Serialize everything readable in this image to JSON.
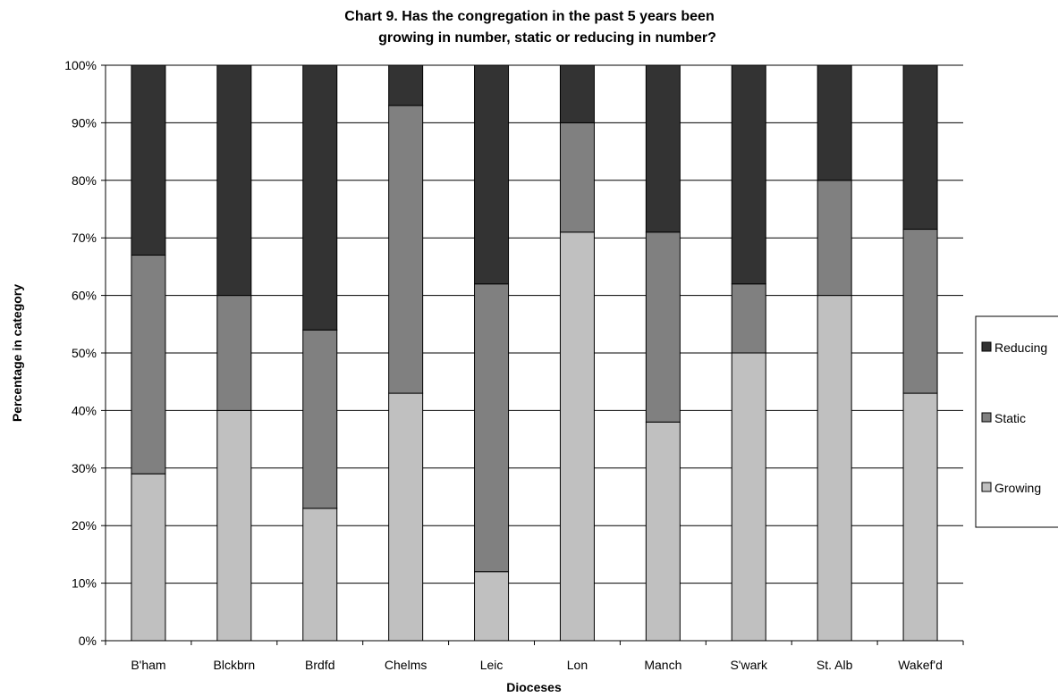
{
  "chart_data": {
    "type": "bar",
    "stacked": true,
    "percent_stacked": true,
    "title_line1": "Chart 9. Has the congregation in the past 5 years been",
    "title_line2": "growing in number, static or reducing in number?",
    "xlabel": "Dioceses",
    "ylabel": "Percentage in category",
    "ylim": [
      0,
      100
    ],
    "yticks": [
      "0%",
      "10%",
      "20%",
      "30%",
      "40%",
      "50%",
      "60%",
      "70%",
      "80%",
      "90%",
      "100%"
    ],
    "grid": true,
    "legend_position": "right",
    "categories": [
      "B'ham",
      "Blckbrn",
      "Brdfd",
      "Chelms",
      "Leic",
      "Lon",
      "Manch",
      "S'wark",
      "St. Alb",
      "Wakef'd"
    ],
    "series": [
      {
        "name": "Growing",
        "color": "#c0c0c0",
        "values": [
          29,
          40,
          23,
          43,
          12,
          71,
          38,
          50,
          60,
          43
        ]
      },
      {
        "name": "Static",
        "color": "#808080",
        "values": [
          38,
          20,
          31,
          50,
          50,
          19,
          33,
          12,
          20,
          28.5
        ]
      },
      {
        "name": "Reducing",
        "color": "#333333",
        "values": [
          33,
          40,
          46,
          7,
          38,
          10,
          29,
          38,
          20,
          28.5
        ]
      }
    ],
    "legend_order": [
      "Reducing",
      "Static",
      "Growing"
    ]
  }
}
